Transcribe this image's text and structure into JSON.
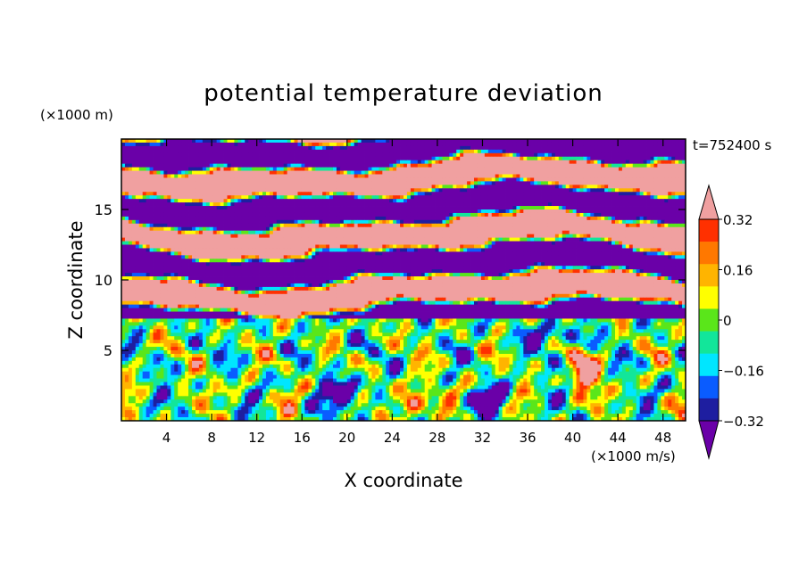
{
  "chart_data": {
    "type": "heatmap",
    "title": "potential temperature deviation",
    "xlabel": "X coordinate",
    "ylabel": "Z coordinate",
    "x_unit": "(×1000 m/s)",
    "y_unit": "(×1000 m)",
    "time_label": "t=752400 s",
    "xlim": [
      0,
      50
    ],
    "ylim": [
      0,
      20
    ],
    "x_ticks": [
      4,
      8,
      12,
      16,
      20,
      24,
      28,
      32,
      36,
      40,
      44,
      48
    ],
    "y_ticks": [
      5,
      10,
      15
    ],
    "colorbar": {
      "levels": [
        -0.4,
        -0.32,
        -0.24,
        -0.16,
        -0.08,
        0,
        0.08,
        0.16,
        0.24,
        0.32,
        0.4
      ],
      "labels": [
        "0.32",
        "0.16",
        "0",
        "−0.16",
        "−0.32"
      ],
      "label_values": [
        0.32,
        0.16,
        0,
        -0.16,
        -0.32
      ],
      "colors": [
        "#6a00a8",
        "#1e1ea0",
        "#0a5cff",
        "#00e6ff",
        "#12e69a",
        "#5ae61a",
        "#ffff00",
        "#ffb400",
        "#ff7800",
        "#ff3000",
        "#f0a0a0"
      ],
      "extend": "both"
    },
    "field_description_layers": [
      {
        "band": "z 0–7",
        "dominant": "mixed -0.32..0.4 convective eddies"
      },
      {
        "band": "z 7–20",
        "dominant": "alternating layers of <-0.4 (purple) and >0.4 (pink)"
      }
    ]
  }
}
